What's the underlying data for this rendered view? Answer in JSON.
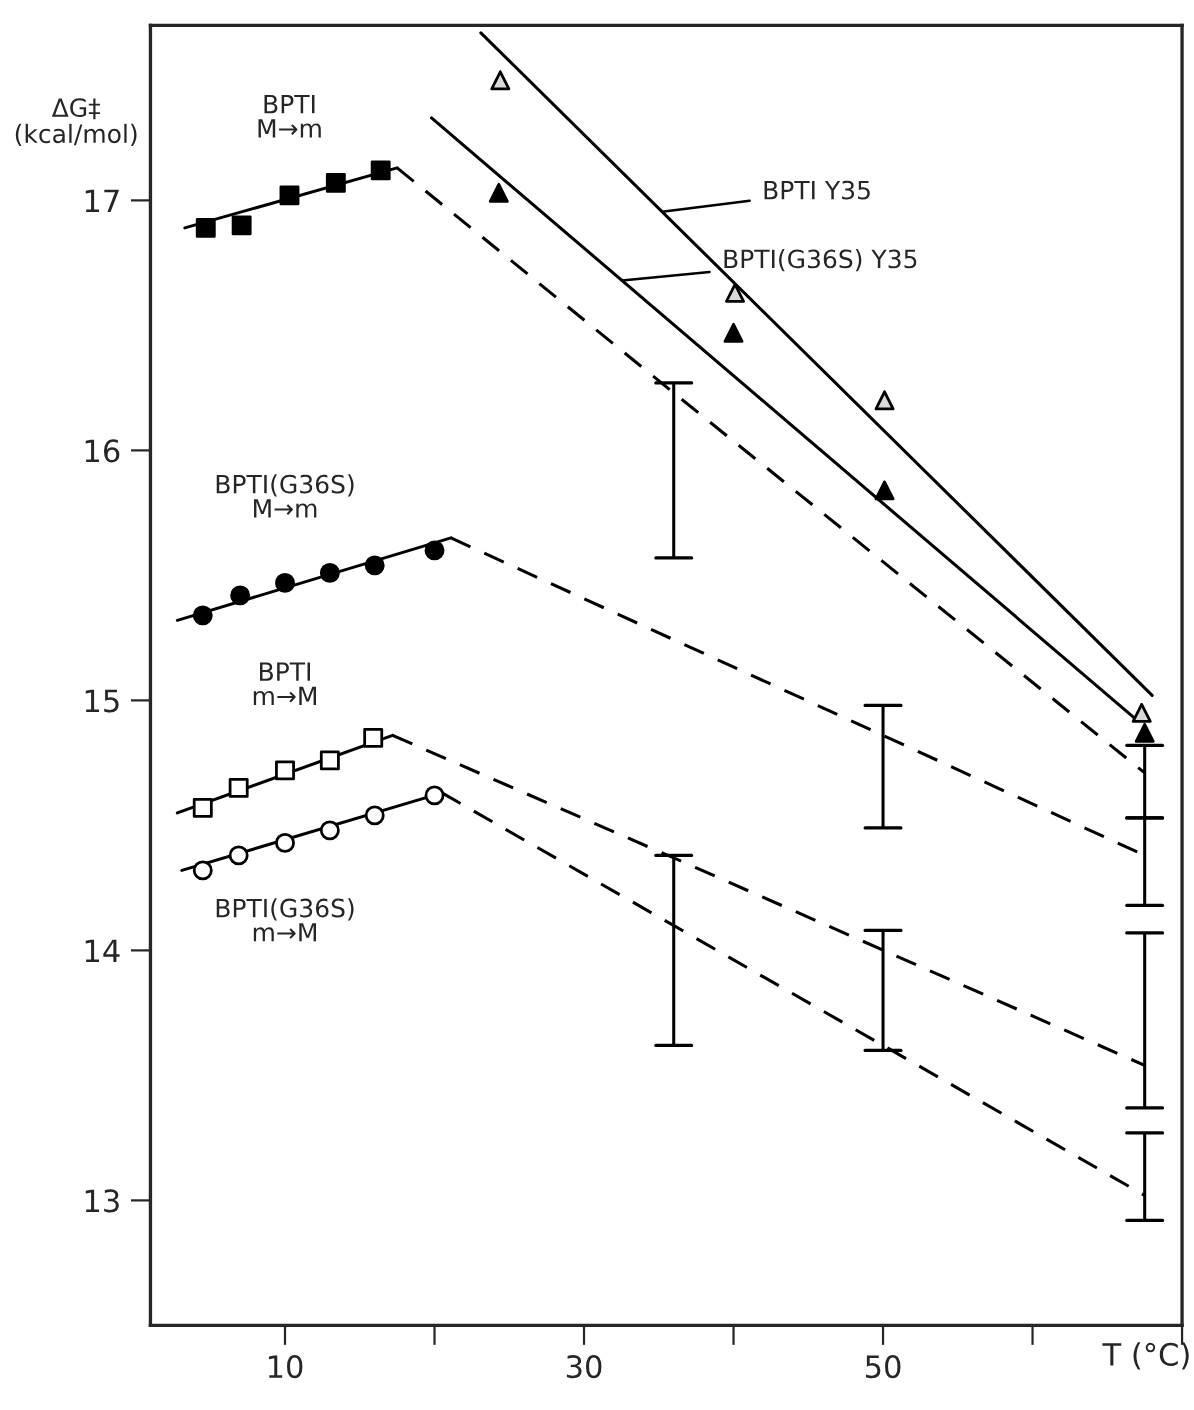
{
  "chart_data": {
    "type": "scatter",
    "ylabel": "ΔG‡\n(kcal/mol)",
    "xlabel": "T (°C)",
    "xlim": [
      1,
      70
    ],
    "xticks": [
      10,
      {
        "value": 20,
        "label": null
      },
      30,
      {
        "value": 40,
        "label": null
      },
      50,
      {
        "value": 60,
        "label": null
      },
      {
        "value": 70,
        "label": null
      }
    ],
    "ylim": [
      12.5,
      17.7
    ],
    "yticks": [
      13,
      14,
      15,
      16,
      17
    ],
    "grid": false,
    "legend": "top right",
    "series": [
      {
        "name": "BPTI\nM→m",
        "marker": "square",
        "color": "#000000",
        "x": [
          4.7,
          7.1,
          10.3,
          13.4,
          16.4
        ],
        "values": [
          16.89,
          16.9,
          17.02,
          17.07,
          17.12
        ]
      },
      {
        "type": "line",
        "line_style": "solid",
        "color": "#000000",
        "x": [
          3.3,
          17.5
        ],
        "values": [
          16.89,
          17.13
        ]
      },
      {
        "type": "line",
        "line_style": "dashed",
        "color": "#000000",
        "x": [
          17.5,
          36,
          67.5
        ],
        "values": [
          17.13,
          16.23,
          14.71
        ],
        "errors": [
          null,
          [
            15.57,
            16.27
          ],
          [
            14.53,
            14.82
          ]
        ]
      },
      {
        "name": "BPTI(G36S)\nM→m",
        "marker": "circle",
        "color": "#000000",
        "x": [
          4.5,
          7.0,
          10.0,
          13.0,
          16.0,
          20.0
        ],
        "values": [
          15.34,
          15.42,
          15.47,
          15.51,
          15.54,
          15.6
        ]
      },
      {
        "type": "line",
        "line_style": "solid",
        "color": "#000000",
        "x": [
          2.8,
          21.1
        ],
        "values": [
          15.32,
          15.65
        ]
      },
      {
        "type": "line",
        "line_style": "dashed",
        "color": "#000000",
        "x": [
          21.1,
          50,
          67.5
        ],
        "values": [
          15.65,
          14.86,
          14.38
        ],
        "errors": [
          null,
          [
            14.49,
            14.98
          ],
          [
            14.18,
            14.53
          ]
        ]
      },
      {
        "name": "BPTI\nm→M",
        "marker": "square",
        "color": "#ffffff",
        "x": [
          4.5,
          6.9,
          10.0,
          13.0,
          15.9
        ],
        "values": [
          14.57,
          14.65,
          14.72,
          14.76,
          14.85
        ]
      },
      {
        "type": "line",
        "line_style": "solid",
        "color": "#000000",
        "x": [
          2.8,
          17.2
        ],
        "values": [
          14.55,
          14.86
        ]
      },
      {
        "type": "line",
        "line_style": "dashed",
        "color": "#000000",
        "x": [
          17.2,
          36,
          67.5
        ],
        "values": [
          14.86,
          14.37,
          13.54
        ],
        "errors": [
          null,
          [
            13.62,
            14.38
          ],
          [
            13.37,
            14.07
          ]
        ]
      },
      {
        "name": "BPTI(G36S)\nm→M",
        "marker": "circle",
        "color": "#ffffff",
        "x": [
          4.5,
          6.9,
          10.0,
          13.0,
          16.0,
          20.0
        ],
        "values": [
          14.32,
          14.38,
          14.43,
          14.48,
          14.54,
          14.62
        ]
      },
      {
        "type": "line",
        "line_style": "solid",
        "color": "#000000",
        "x": [
          3.1,
          20.5
        ],
        "values": [
          14.32,
          14.63
        ]
      },
      {
        "type": "line",
        "line_style": "dashed",
        "color": "#000000",
        "x": [
          20.5,
          50,
          67.5
        ],
        "values": [
          14.63,
          13.62,
          13.02
        ],
        "errors": [
          null,
          [
            13.6,
            14.08
          ],
          [
            12.92,
            13.27
          ]
        ]
      },
      {
        "marker": "triangle",
        "color": "#d9d9d9",
        "x": [
          24.4,
          40.1,
          50.1,
          67.3
        ],
        "values": [
          17.48,
          16.63,
          16.2,
          14.95
        ]
      },
      {
        "type": "line",
        "name": "BPTI Y35",
        "line_style": "solid",
        "color": "#000000",
        "x": [
          23.1,
          68
        ],
        "values": [
          17.67,
          15.02
        ]
      },
      {
        "marker": "triangle",
        "color": "#000000",
        "x": [
          24.3,
          40.0,
          50.1,
          67.5
        ],
        "values": [
          17.03,
          16.47,
          15.84,
          14.87
        ]
      },
      {
        "type": "line",
        "name": "BPTI(G36S) Y35",
        "line_style": "solid",
        "color": "#000000",
        "x": [
          19.8,
          67
        ],
        "values": [
          17.33,
          14.92
        ]
      }
    ]
  }
}
